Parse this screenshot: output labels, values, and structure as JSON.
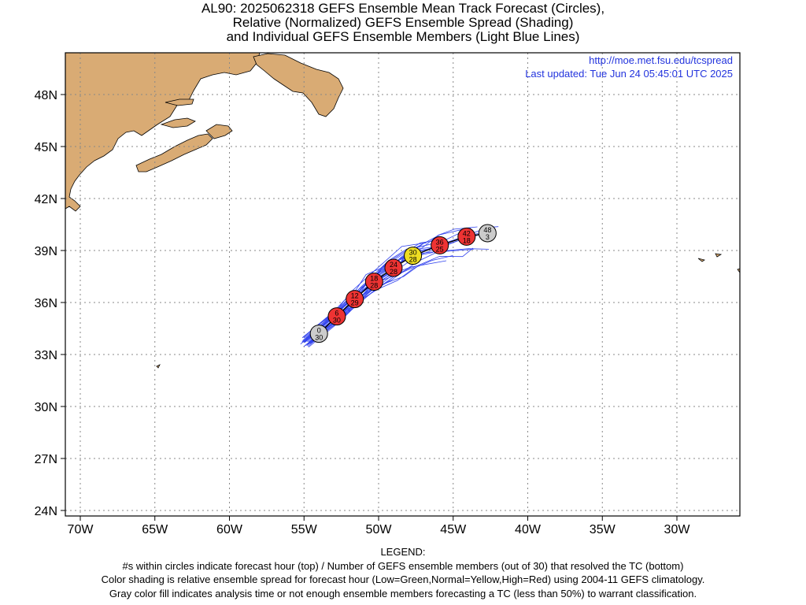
{
  "title": {
    "line1": "AL90: 2025062318 GEFS Ensemble Mean Track Forecast (Circles),",
    "line2": "Relative (Normalized) GEFS Ensemble Spread (Shading)",
    "line3": "and Individual GEFS Ensemble Members (Light Blue Lines)"
  },
  "info": {
    "url": "http://moe.met.fsu.edu/tcspread",
    "updated": "Last updated: Tue Jun 24 05:45:01 UTC 2025"
  },
  "axes": {
    "lon_labels": [
      "70W",
      "65W",
      "60W",
      "55W",
      "50W",
      "45W",
      "40W",
      "35W",
      "30W"
    ],
    "lat_labels": [
      "48N",
      "45N",
      "42N",
      "39N",
      "36N",
      "33N",
      "30N",
      "27N",
      "24N"
    ]
  },
  "colors": {
    "land": "#d9ab74",
    "track_members": "#3344ee",
    "mean_track": "#000000",
    "low_spread": "#33cc33",
    "normal_spread": "#eedd22",
    "high_spread": "#ee3333",
    "analysis_gray": "#cccccc"
  },
  "forecast_points": [
    {
      "lon": -54.0,
      "lat": 34.2,
      "hour": "0",
      "members": "30",
      "spread": "gray"
    },
    {
      "lon": -52.8,
      "lat": 35.2,
      "hour": "6",
      "members": "30",
      "spread": "high"
    },
    {
      "lon": -51.6,
      "lat": 36.2,
      "hour": "12",
      "members": "29",
      "spread": "high"
    },
    {
      "lon": -50.3,
      "lat": 37.2,
      "hour": "18",
      "members": "28",
      "spread": "high"
    },
    {
      "lon": -49.0,
      "lat": 38.0,
      "hour": "24",
      "members": "28",
      "spread": "high"
    },
    {
      "lon": -47.7,
      "lat": 38.7,
      "hour": "30",
      "members": "28",
      "spread": "normal"
    },
    {
      "lon": -45.9,
      "lat": 39.3,
      "hour": "36",
      "members": "25",
      "spread": "high"
    },
    {
      "lon": -44.1,
      "lat": 39.8,
      "hour": "42",
      "members": "18",
      "spread": "high"
    },
    {
      "lon": -42.7,
      "lat": 40.0,
      "hour": "48",
      "members": "3",
      "spread": "gray"
    }
  ],
  "legend": {
    "heading": "LEGEND:",
    "line1": "#s within circles indicate forecast hour (top) / Number of GEFS ensemble members (out of 30) that resolved the TC (bottom)",
    "line2": "Color shading is relative ensemble spread for forecast hour (Low=Green,Normal=Yellow,High=Red) using 2004-11 GEFS climatology.",
    "line3": "Gray color fill indicates analysis time or not enough ensemble members forecasting a TC (less than 50%) to warrant classification."
  }
}
